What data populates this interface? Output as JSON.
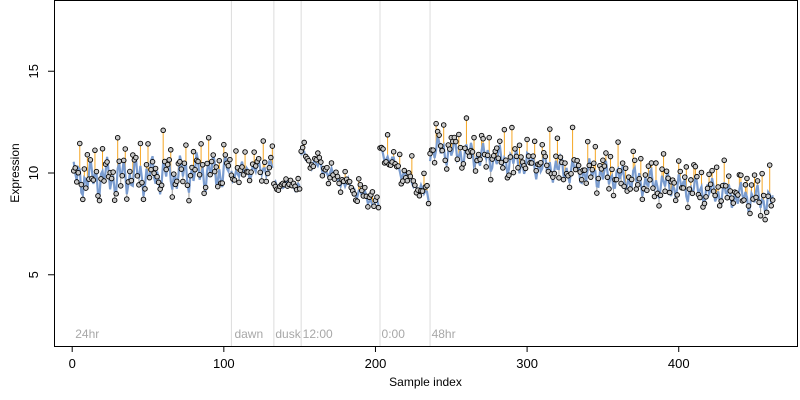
{
  "chart_data": {
    "type": "scatter",
    "title": "",
    "xlabel": "Sample index",
    "ylabel": "Expression",
    "xlim": [
      -12,
      478
    ],
    "ylim": [
      1.5,
      18.5
    ],
    "x_ticks": [
      0,
      100,
      200,
      300,
      400
    ],
    "y_ticks": [
      5,
      10,
      15
    ],
    "grid": false,
    "legend": "none",
    "colors": {
      "point_fill": "#c9c9c9",
      "point_stroke": "#000000",
      "fitted_line": "#7a9ccf",
      "residual_up": "#f5a623",
      "residual_down": "#9a9a9a",
      "boundary": "#dcdcdc",
      "phase_text": "#a8a8a8"
    },
    "phase_boundaries": [
      105,
      133,
      151,
      203,
      236
    ],
    "phase_labels": [
      {
        "x": 2,
        "text": "24hr"
      },
      {
        "x": 107,
        "text": "dawn"
      },
      {
        "x": 134,
        "text": "dusk"
      },
      {
        "x": 152,
        "text": "12:00"
      },
      {
        "x": 204,
        "text": "0:00"
      },
      {
        "x": 237,
        "text": "48hr"
      }
    ],
    "series": [
      {
        "segments": [
          {
            "x_start": 1,
            "x_end": 104,
            "level_start": 9.7,
            "level_end": 10.1,
            "swing": 1.05,
            "noise": 0.45,
            "spike_every": 5,
            "spike": 1.4
          },
          {
            "x_start": 105,
            "x_end": 132,
            "level_start": 10.0,
            "level_end": 10.3,
            "swing": 0.5,
            "noise": 0.35,
            "spike_every": 6,
            "spike": 1.0
          },
          {
            "x_start": 133,
            "x_end": 150,
            "level_start": 9.4,
            "level_end": 9.4,
            "swing": 0.25,
            "noise": 0.25,
            "spike_every": 0,
            "spike": 0
          },
          {
            "x_start": 151,
            "x_end": 202,
            "level_start": 10.9,
            "level_end": 8.4,
            "swing": 0.35,
            "noise": 0.3,
            "spike_every": 9,
            "spike": 0.6
          },
          {
            "x_start": 203,
            "x_end": 235,
            "level_start": 11.1,
            "level_end": 8.8,
            "swing": 0.35,
            "noise": 0.3,
            "spike_every": 8,
            "spike": 1.0
          },
          {
            "x_start": 236,
            "x_end": 462,
            "level_start": 11.2,
            "level_end": 8.6,
            "swing": 0.75,
            "noise": 0.45,
            "spike_every": 5,
            "spike": 1.3
          }
        ]
      }
    ]
  }
}
